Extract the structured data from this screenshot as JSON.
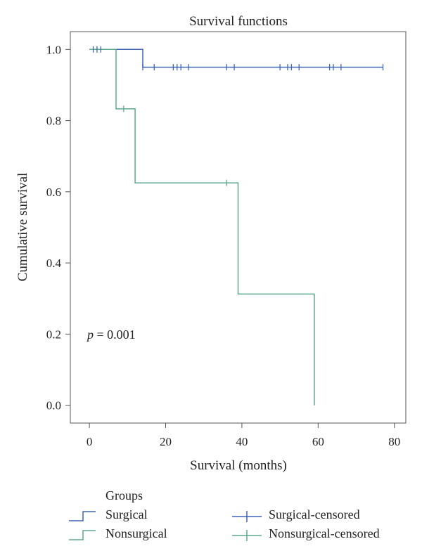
{
  "chart_data": {
    "type": "line",
    "subtype": "kaplan-meier-step",
    "title": "Survival functions",
    "xlabel": "Survival (months)",
    "ylabel": "Cumulative survival",
    "xlim": [
      -5,
      83
    ],
    "ylim": [
      -0.05,
      1.05
    ],
    "xticks": [
      0,
      20,
      40,
      60,
      80
    ],
    "yticks": [
      0.0,
      0.2,
      0.4,
      0.6,
      0.8,
      1.0
    ],
    "xtick_labels": [
      "0",
      "20",
      "40",
      "60",
      "80"
    ],
    "ytick_labels": [
      "0.0",
      "0.2",
      "0.4",
      "0.6",
      "0.8",
      "1.0"
    ],
    "grid": false,
    "legend_position": "bottom",
    "legend_title": "Groups",
    "annotation": {
      "symbol": "p",
      "text": " = 0.001",
      "x": 0,
      "y": 0.2
    },
    "series": [
      {
        "name": "Surgical",
        "color": "#3f63b8",
        "steps": [
          [
            0,
            1.0
          ],
          [
            14,
            1.0
          ],
          [
            14,
            0.95
          ],
          [
            77,
            0.95
          ]
        ]
      },
      {
        "name": "Nonsurgical",
        "color": "#5fa88f",
        "steps": [
          [
            0,
            1.0
          ],
          [
            7,
            1.0
          ],
          [
            7,
            0.833
          ],
          [
            12,
            0.833
          ],
          [
            12,
            0.625
          ],
          [
            39,
            0.625
          ],
          [
            39,
            0.3125
          ],
          [
            59,
            0.3125
          ],
          [
            59,
            0.0
          ]
        ]
      }
    ],
    "censored": [
      {
        "name": "Surgical-censored",
        "color": "#3f63b8",
        "points": [
          [
            1,
            1.0
          ],
          [
            2,
            1.0
          ],
          [
            3,
            1.0
          ],
          [
            14,
            0.95
          ],
          [
            17,
            0.95
          ],
          [
            22,
            0.95
          ],
          [
            23,
            0.95
          ],
          [
            24,
            0.95
          ],
          [
            26,
            0.95
          ],
          [
            36,
            0.95
          ],
          [
            38,
            0.95
          ],
          [
            50,
            0.95
          ],
          [
            52,
            0.95
          ],
          [
            53,
            0.95
          ],
          [
            55,
            0.95
          ],
          [
            63,
            0.95
          ],
          [
            64,
            0.95
          ],
          [
            66,
            0.95
          ],
          [
            77,
            0.95
          ]
        ]
      },
      {
        "name": "Nonsurgical-censored",
        "color": "#5fa88f",
        "points": [
          [
            9,
            0.833
          ],
          [
            36,
            0.625
          ]
        ]
      }
    ]
  }
}
